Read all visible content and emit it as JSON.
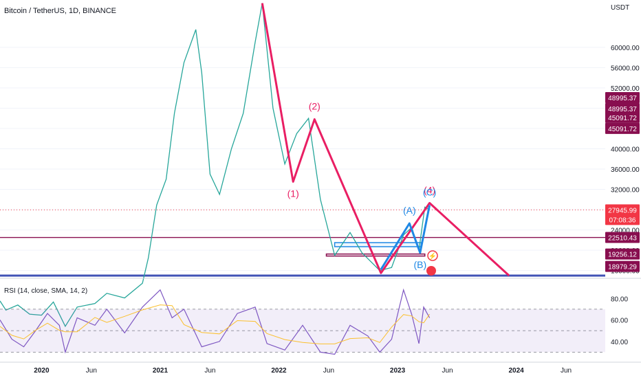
{
  "header": {
    "symbol_label": "Bitcoin / TetherUS, 1D, BINANCE"
  },
  "price_axis": {
    "currency": "USDT",
    "ticks": [
      "60000.00",
      "56000.00",
      "52000.00",
      "48000.00",
      "44000.00",
      "40000.00",
      "36000.00",
      "32000.00",
      "28000.00",
      "24000.00",
      "20000.00",
      "16000.00"
    ],
    "tick_values": [
      60000,
      56000,
      52000,
      48000,
      44000,
      40000,
      36000,
      32000,
      28000,
      24000,
      20000,
      16000
    ]
  },
  "price_badges": [
    {
      "text": "48995.37",
      "price": 48995.37,
      "color": "#880e4f",
      "yoff": -8
    },
    {
      "text": "48995.37",
      "price": 48995.37,
      "color": "#880e4f",
      "yoff": 8
    },
    {
      "text": "45091.72",
      "price": 45091.72,
      "color": "#880e4f",
      "yoff": -8
    },
    {
      "text": "45091.72",
      "price": 45091.72,
      "color": "#880e4f",
      "yoff": 8
    },
    {
      "text": "27945.99",
      "price": 27945.99,
      "color": "#f23645",
      "yoff": 0
    },
    {
      "text": "07:08:36",
      "price": 27945.99,
      "color": "#f23645",
      "yoff": 14
    },
    {
      "text": "22510.43",
      "price": 22510.43,
      "color": "#880e4f",
      "yoff": 0
    },
    {
      "text": "19256.12",
      "price": 19256.12,
      "color": "#880e4f",
      "yoff": 0
    },
    {
      "text": "18979.29",
      "price": 18979.29,
      "color": "#880e4f",
      "yoff": 16
    }
  ],
  "time_axis": {
    "labels": [
      {
        "text": "2020",
        "t": 2020.0,
        "bold": true
      },
      {
        "text": "Jun",
        "t": 2020.42,
        "bold": false
      },
      {
        "text": "2021",
        "t": 2021.0,
        "bold": true
      },
      {
        "text": "Jun",
        "t": 2021.42,
        "bold": false
      },
      {
        "text": "2022",
        "t": 2022.0,
        "bold": true
      },
      {
        "text": "Jun",
        "t": 2022.42,
        "bold": false
      },
      {
        "text": "2023",
        "t": 2023.0,
        "bold": true
      },
      {
        "text": "Jun",
        "t": 2023.42,
        "bold": false
      },
      {
        "text": "2024",
        "t": 2024.0,
        "bold": true
      },
      {
        "text": "Jun",
        "t": 2024.42,
        "bold": false
      }
    ]
  },
  "rsi": {
    "label": "RSI (14, close, SMA, 14, 2)",
    "ticks": [
      "80.00",
      "60.00",
      "40.00"
    ],
    "tick_values": [
      80,
      60,
      40
    ],
    "bands": [
      70,
      50,
      30
    ]
  },
  "chart_data": {
    "type": "line",
    "price_series": {
      "name": "Bitcoin / TetherUS",
      "points": [
        [
          2019.65,
          10000
        ],
        [
          2019.7,
          8200
        ],
        [
          2019.8,
          9200
        ],
        [
          2019.9,
          7400
        ],
        [
          2020.0,
          7200
        ],
        [
          2020.1,
          9800
        ],
        [
          2020.2,
          5000
        ],
        [
          2020.3,
          8800
        ],
        [
          2020.45,
          9500
        ],
        [
          2020.55,
          11500
        ],
        [
          2020.7,
          10600
        ],
        [
          2020.85,
          13500
        ],
        [
          2020.9,
          18500
        ],
        [
          2020.97,
          28900
        ],
        [
          2021.05,
          34000
        ],
        [
          2021.12,
          47000
        ],
        [
          2021.2,
          57000
        ],
        [
          2021.3,
          63500
        ],
        [
          2021.35,
          55000
        ],
        [
          2021.42,
          35000
        ],
        [
          2021.5,
          31000
        ],
        [
          2021.6,
          40000
        ],
        [
          2021.7,
          47000
        ],
        [
          2021.8,
          61000
        ],
        [
          2021.86,
          68700
        ],
        [
          2021.95,
          48000
        ],
        [
          2022.05,
          37000
        ],
        [
          2022.15,
          43000
        ],
        [
          2022.25,
          46000
        ],
        [
          2022.35,
          30000
        ],
        [
          2022.47,
          19000
        ],
        [
          2022.6,
          23500
        ],
        [
          2022.7,
          19500
        ],
        [
          2022.85,
          16000
        ],
        [
          2022.95,
          16600
        ],
        [
          2023.05,
          23000
        ],
        [
          2023.12,
          24500
        ],
        [
          2023.18,
          20000
        ],
        [
          2023.23,
          28500
        ],
        [
          2023.27,
          27946
        ]
      ]
    },
    "elliott_main": {
      "color": "#e91e63",
      "points": [
        [
          2021.86,
          68700
        ],
        [
          2022.12,
          33500
        ],
        [
          2022.3,
          45800
        ],
        [
          2022.86,
          15500
        ],
        [
          2023.27,
          29300
        ],
        [
          2023.94,
          15000
        ]
      ],
      "labels": [
        {
          "text": "(1)",
          "t": 2022.12,
          "price": 33500,
          "pos": "below"
        },
        {
          "text": "(2)",
          "t": 2022.3,
          "price": 45800,
          "pos": "above"
        },
        {
          "text": "(4)",
          "t": 2023.27,
          "price": 29300,
          "pos": "above"
        }
      ]
    },
    "elliott_abc": {
      "color": "#1e88e5",
      "points": [
        [
          2022.86,
          16200
        ],
        [
          2023.1,
          25300
        ],
        [
          2023.19,
          19500
        ],
        [
          2023.27,
          28900
        ]
      ],
      "labels": [
        {
          "text": "(A)",
          "t": 2023.1,
          "price": 25300,
          "pos": "above"
        },
        {
          "text": "(B)",
          "t": 2023.19,
          "price": 19500,
          "pos": "below"
        },
        {
          "text": "(C)",
          "t": 2023.27,
          "price": 28900,
          "pos": "above"
        }
      ]
    },
    "horizontal_lines": [
      {
        "price": 22510.43,
        "color": "#880e4f"
      },
      {
        "price": 15000,
        "color": "#3f51b5",
        "width": 3
      }
    ],
    "last_price_line": {
      "price": 27945.99,
      "color": "#f23645"
    },
    "zones": [
      {
        "t1": 2022.47,
        "t2": 2023.2,
        "p1": 21500,
        "p2": 20700,
        "color": "#1e88e5"
      },
      {
        "t1": 2022.4,
        "t2": 2023.23,
        "p1": 19256.12,
        "p2": 18979.29,
        "color": "#880e4f"
      }
    ],
    "rsi_series": {
      "name": "RSI",
      "points": [
        [
          2019.65,
          60
        ],
        [
          2019.75,
          42
        ],
        [
          2019.85,
          35
        ],
        [
          2019.95,
          50
        ],
        [
          2020.05,
          66
        ],
        [
          2020.15,
          55
        ],
        [
          2020.2,
          30
        ],
        [
          2020.3,
          62
        ],
        [
          2020.45,
          55
        ],
        [
          2020.55,
          70
        ],
        [
          2020.7,
          48
        ],
        [
          2020.85,
          72
        ],
        [
          2021.0,
          88
        ],
        [
          2021.1,
          62
        ],
        [
          2021.2,
          70
        ],
        [
          2021.35,
          35
        ],
        [
          2021.5,
          40
        ],
        [
          2021.65,
          66
        ],
        [
          2021.8,
          72
        ],
        [
          2021.9,
          38
        ],
        [
          2022.05,
          32
        ],
        [
          2022.2,
          55
        ],
        [
          2022.35,
          30
        ],
        [
          2022.47,
          28
        ],
        [
          2022.6,
          55
        ],
        [
          2022.75,
          45
        ],
        [
          2022.85,
          30
        ],
        [
          2022.95,
          42
        ],
        [
          2023.05,
          88
        ],
        [
          2023.12,
          65
        ],
        [
          2023.18,
          38
        ],
        [
          2023.22,
          72
        ],
        [
          2023.27,
          62
        ]
      ]
    },
    "price_range": [
      15000,
      70000
    ],
    "rsi_range": [
      20,
      100
    ],
    "time_range": [
      2019.65,
      2024.75
    ]
  }
}
